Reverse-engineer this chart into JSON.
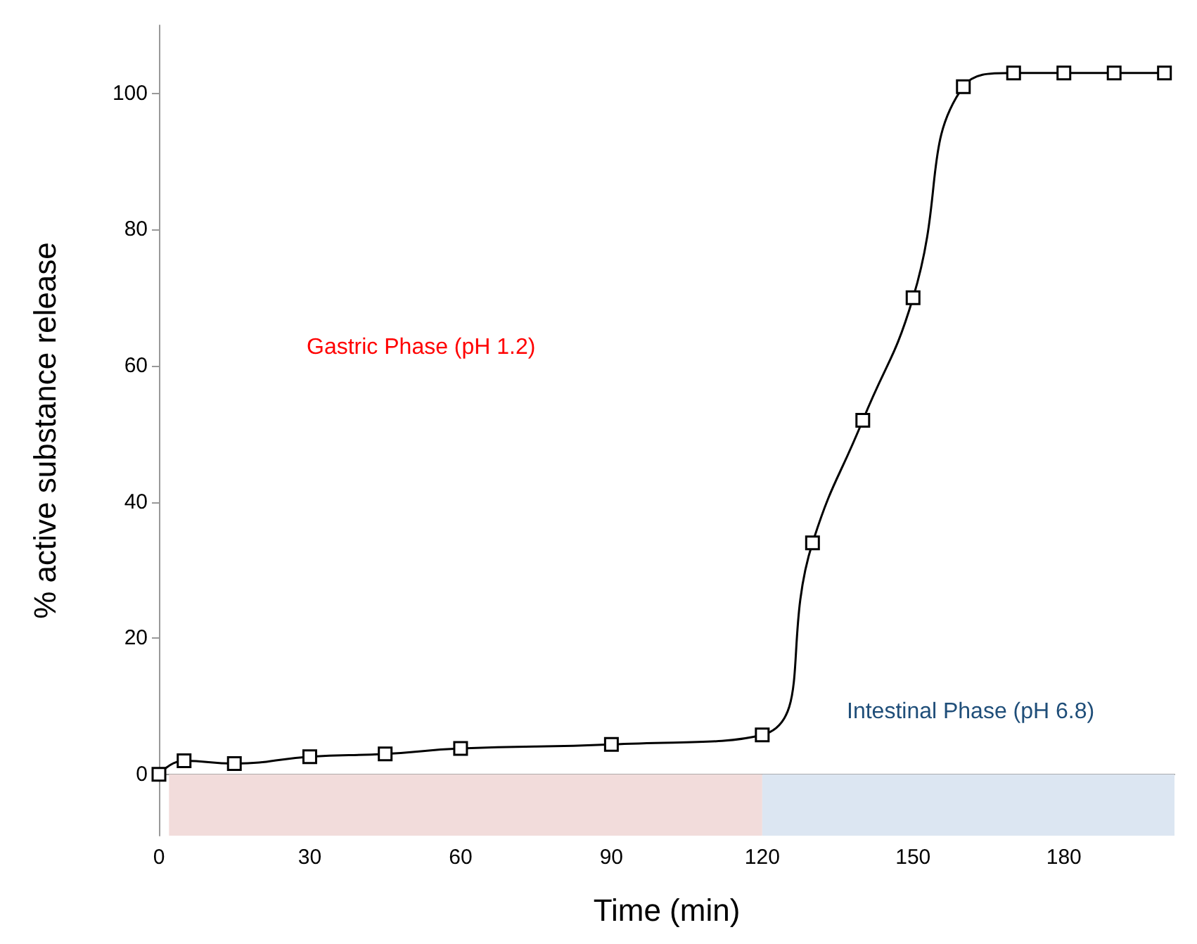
{
  "chart_data": {
    "type": "line",
    "xlabel": "Time (min)",
    "ylabel": "% active substance release",
    "x": [
      0,
      5,
      15,
      30,
      45,
      60,
      90,
      120,
      130,
      140,
      150,
      160,
      170,
      180,
      190,
      200
    ],
    "series": [
      {
        "color": "#000000",
        "values": [
          0,
          2,
          1.6,
          2.6,
          3,
          3.8,
          4.4,
          5.8,
          34,
          52,
          70,
          101,
          103,
          103,
          103,
          103
        ]
      }
    ],
    "xlim": [
      0,
      202
    ],
    "xticks": [
      0,
      30,
      60,
      90,
      120,
      150,
      180
    ],
    "ylim": [
      -9,
      110
    ],
    "yticks": [
      0,
      20,
      40,
      60,
      80,
      100
    ],
    "bands": [
      {
        "axis": "x",
        "from": 2,
        "to": 120,
        "color": "#f2dcdb"
      },
      {
        "axis": "x",
        "from": 120,
        "to": 202,
        "color": "#dce6f2"
      }
    ],
    "annotations": [
      "Gastric Phase (pH 1.2)",
      "Intestinal Phase (pH 6.8)"
    ],
    "marker": "square"
  }
}
